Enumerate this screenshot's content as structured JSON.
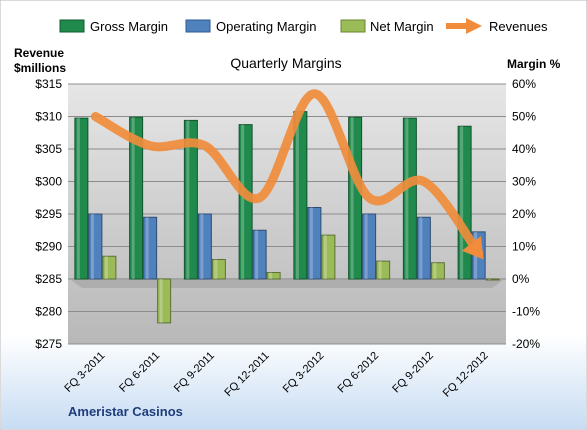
{
  "chart_data": {
    "type": "bar",
    "title": "Quarterly Margins",
    "left_axis_title": [
      "Revenue",
      "$millions"
    ],
    "right_axis_title": "Margin %",
    "categories": [
      "FQ 3-2011",
      "FQ 6-2011",
      "FQ 9-2011",
      "FQ 12-2011",
      "FQ 3-2012",
      "FQ 6-2012",
      "FQ 9-2012",
      "FQ 12-2012"
    ],
    "left_axis": {
      "min": 275,
      "max": 315,
      "step": 5,
      "tick_labels": [
        "$275",
        "$280",
        "$285",
        "$290",
        "$295",
        "$300",
        "$305",
        "$310",
        "$315"
      ]
    },
    "right_axis": {
      "min": -20,
      "max": 60,
      "step": 10,
      "tick_labels": [
        "-20%",
        "-10%",
        "0%",
        "10%",
        "20%",
        "30%",
        "40%",
        "50%",
        "60%"
      ]
    },
    "series": [
      {
        "name": "Gross Margin",
        "kind": "bar",
        "axis": "right",
        "color": "#1f8a4c",
        "values": [
          49.5,
          49.8,
          48.8,
          47.5,
          51.5,
          49.8,
          49.5,
          47.0
        ]
      },
      {
        "name": "Operating Margin",
        "kind": "bar",
        "axis": "right",
        "color": "#4f81bd",
        "values": [
          20.0,
          19.0,
          20.0,
          15.0,
          22.0,
          20.0,
          19.0,
          14.5
        ]
      },
      {
        "name": "Net Margin",
        "kind": "bar",
        "axis": "right",
        "color": "#9bbb59",
        "values": [
          7.0,
          -13.5,
          6.0,
          2.0,
          13.5,
          5.5,
          5.0,
          0.0
        ]
      },
      {
        "name": "Revenues",
        "kind": "line",
        "axis": "left",
        "color": "#f08c3c",
        "values": [
          310.0,
          305.5,
          305.5,
          297.5,
          313.5,
          297.5,
          300.0,
          289.0
        ]
      }
    ],
    "legend_position": "top",
    "company": "Ameristar Casinos",
    "colors": {
      "background": "#ffffff",
      "plot_area": "#c0c0c0",
      "floor": "#a6a6a6",
      "bottom_band": "#dce9f7",
      "company_text": "#1f3d7a"
    }
  }
}
